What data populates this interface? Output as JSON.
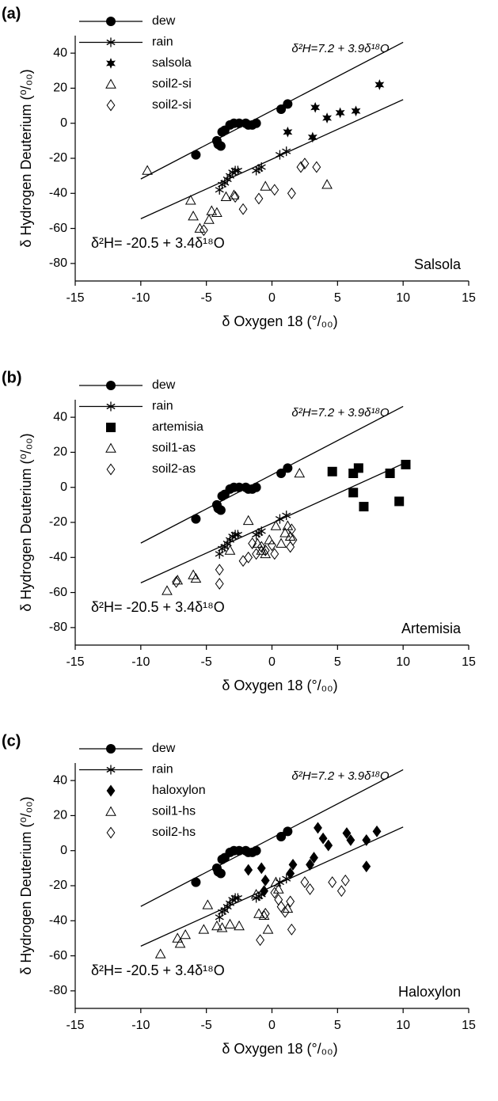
{
  "chart_data": [
    {
      "type": "scatter",
      "panel": "(a)",
      "plant": "Salsola",
      "x_label": "δ Oxygen 18 (°/₀₀)",
      "y_label": "δ Hydrogen Deuterium (⁰/₀₀)",
      "eq_upper": "δ²H=7.2 + 3.9δ¹⁸O",
      "eq_lower": "δ²H= -20.5 + 3.4δ¹⁸O",
      "xlim": [
        -15,
        15
      ],
      "xticks": [
        -15,
        -10,
        -5,
        0,
        5,
        10,
        15
      ],
      "ylim": [
        -90,
        50
      ],
      "yticks": [
        -80,
        -60,
        -40,
        -20,
        0,
        20,
        40
      ],
      "lines": [
        {
          "x": [
            -10,
            10
          ],
          "values": [
            -31.8,
            46.2
          ]
        },
        {
          "x": [
            -10,
            10
          ],
          "values": [
            -54.5,
            13.5
          ]
        }
      ],
      "series": [
        {
          "name": "dew",
          "marker": "circle",
          "legend_line": true,
          "color": "#000",
          "x": [
            -5.8,
            -4.2,
            -4.1,
            -3.9,
            -3.8,
            -3.6,
            -3.2,
            -2.9,
            -2.5,
            -2.0,
            -1.8,
            -1.5,
            -1.2,
            0.7,
            1.2
          ],
          "values": [
            -18,
            -10,
            -12,
            -13,
            -5,
            -4,
            -1,
            0,
            0,
            0,
            -1,
            -1,
            0,
            8,
            11
          ]
        },
        {
          "name": "rain",
          "marker": "asterisk",
          "legend_line": true,
          "color": "#000",
          "x": [
            -4,
            -3.8,
            -3.6,
            -3.4,
            -3.2,
            -3,
            -2.8,
            -2.6,
            -1.2,
            -1,
            -0.8,
            0.6,
            1.1
          ],
          "values": [
            -38,
            -35,
            -34,
            -32,
            -30,
            -28,
            -27,
            -27,
            -27,
            -26,
            -25,
            -18,
            -16
          ]
        },
        {
          "name": "salsola",
          "marker": "star",
          "color": "#000",
          "x": [
            1.2,
            3.3,
            3.1,
            4.2,
            5.2,
            6.4,
            8.2
          ],
          "values": [
            -5,
            9,
            -8,
            3,
            6,
            7,
            22
          ]
        },
        {
          "name": "soil2-si",
          "marker": "triangle",
          "color": "#000",
          "x": [
            -9.5,
            -6.2,
            -6,
            -5.5,
            -4.8,
            -4.6,
            -4.2,
            -3.5,
            -2.9,
            -0.5,
            4.2
          ],
          "values": [
            -27,
            -44,
            -53,
            -60,
            -55,
            -50,
            -51,
            -42,
            -41,
            -36,
            -35
          ]
        },
        {
          "name": "soil2-si",
          "marker": "diamond",
          "color": "#000",
          "x": [
            -5.2,
            -2.8,
            -2.2,
            -1.0,
            0.2,
            1.5,
            2.2,
            2.5,
            3.4
          ],
          "values": [
            -61,
            -42,
            -49,
            -43,
            -38,
            -40,
            -25,
            -23,
            -25
          ]
        }
      ]
    },
    {
      "type": "scatter",
      "panel": "(b)",
      "plant": "Artemisia",
      "x_label": "δ Oxygen 18 (°/₀₀)",
      "y_label": "δ Hydrogen Deuterium (⁰/₀₀)",
      "eq_upper": "δ²H=7.2 + 3.9δ¹⁸O",
      "eq_lower": "δ²H= -20.5 + 3.4δ¹⁸O",
      "xlim": [
        -15,
        15
      ],
      "xticks": [
        -15,
        -10,
        -5,
        0,
        5,
        10,
        15
      ],
      "ylim": [
        -90,
        50
      ],
      "yticks": [
        -80,
        -60,
        -40,
        -20,
        0,
        20,
        40
      ],
      "lines": [
        {
          "x": [
            -10,
            10
          ],
          "values": [
            -31.8,
            46.2
          ]
        },
        {
          "x": [
            -10,
            10
          ],
          "values": [
            -54.5,
            13.5
          ]
        }
      ],
      "series": [
        {
          "name": "dew",
          "marker": "circle",
          "legend_line": true,
          "color": "#000",
          "x": [
            -5.8,
            -4.2,
            -4.1,
            -3.9,
            -3.8,
            -3.6,
            -3.2,
            -2.9,
            -2.5,
            -2.0,
            -1.8,
            -1.5,
            -1.2,
            0.7,
            1.2
          ],
          "values": [
            -18,
            -10,
            -12,
            -13,
            -5,
            -4,
            -1,
            0,
            0,
            0,
            -1,
            -1,
            0,
            8,
            11
          ]
        },
        {
          "name": "rain",
          "marker": "asterisk",
          "legend_line": true,
          "color": "#000",
          "x": [
            -4,
            -3.8,
            -3.6,
            -3.4,
            -3.2,
            -3,
            -2.8,
            -2.6,
            -1.2,
            -1,
            -0.8,
            0.6,
            1.1
          ],
          "values": [
            -38,
            -35,
            -34,
            -32,
            -30,
            -28,
            -27,
            -27,
            -27,
            -26,
            -25,
            -18,
            -16
          ]
        },
        {
          "name": "artemisia",
          "marker": "square",
          "color": "#000",
          "x": [
            4.6,
            6.2,
            6.6,
            6.2,
            7,
            9,
            9.7,
            10.2
          ],
          "values": [
            9,
            8,
            11,
            -3,
            -11,
            8,
            -8,
            13
          ]
        },
        {
          "name": "soil1-as",
          "marker": "triangle",
          "color": "#000",
          "x": [
            -8,
            -7.2,
            -6,
            -5.8,
            -3.2,
            -1.8,
            -1.1,
            -0.8,
            -0.5,
            -0.2,
            0.3,
            0.7,
            1,
            1.2,
            1.4,
            2.1
          ],
          "values": [
            -59,
            -53,
            -50,
            -52,
            -36,
            -19,
            -32,
            -36,
            -38,
            -30,
            -22,
            -32,
            -26,
            -22,
            -28,
            8
          ]
        },
        {
          "name": "soil2-as",
          "marker": "diamond",
          "color": "#000",
          "x": [
            -7.3,
            -4,
            -4,
            -1.5,
            -1.2,
            -2.2,
            -1.8,
            -0.8,
            -0.5,
            0,
            1.5,
            1.6,
            1.4,
            0.2
          ],
          "values": [
            -54,
            -47,
            -55,
            -32,
            -38,
            -42,
            -40,
            -34,
            -36,
            -33,
            -24,
            -30,
            -34,
            -38
          ]
        }
      ]
    },
    {
      "type": "scatter",
      "panel": "(c)",
      "plant": "Haloxylon",
      "x_label": "δ Oxygen 18 (°/₀₀)",
      "y_label": "δ Hydrogen Deuterium (⁰/₀₀)",
      "eq_upper": "δ²H=7.2 + 3.9δ¹⁸O",
      "eq_lower": "δ²H= -20.5 + 3.4δ¹⁸O",
      "xlim": [
        -15,
        15
      ],
      "xticks": [
        -15,
        -10,
        -5,
        0,
        5,
        10,
        15
      ],
      "ylim": [
        -90,
        50
      ],
      "yticks": [
        -80,
        -60,
        -40,
        -20,
        0,
        20,
        40
      ],
      "lines": [
        {
          "x": [
            -10,
            10
          ],
          "values": [
            -31.8,
            46.2
          ]
        },
        {
          "x": [
            -10,
            10
          ],
          "values": [
            -54.5,
            13.5
          ]
        }
      ],
      "series": [
        {
          "name": "dew",
          "marker": "circle",
          "legend_line": true,
          "color": "#000",
          "x": [
            -5.8,
            -4.2,
            -4.1,
            -3.9,
            -3.8,
            -3.6,
            -3.2,
            -2.9,
            -2.5,
            -2.0,
            -1.8,
            -1.5,
            -1.2,
            0.7,
            1.2
          ],
          "values": [
            -18,
            -10,
            -12,
            -13,
            -5,
            -4,
            -1,
            0,
            0,
            0,
            -1,
            -1,
            0,
            8,
            11
          ]
        },
        {
          "name": "rain",
          "marker": "asterisk",
          "legend_line": true,
          "color": "#000",
          "x": [
            -4,
            -3.8,
            -3.6,
            -3.4,
            -3.2,
            -3,
            -2.8,
            -2.6,
            -1.2,
            -1,
            -0.8,
            0.6,
            1.1
          ],
          "values": [
            -38,
            -35,
            -34,
            -32,
            -30,
            -28,
            -27,
            -27,
            -27,
            -26,
            -25,
            -18,
            -16
          ]
        },
        {
          "name": "haloxylon",
          "marker": "filled-diamond",
          "color": "#000",
          "x": [
            -1.8,
            -0.8,
            -0.5,
            -0.6,
            1.4,
            1.6,
            2.9,
            3.2,
            3.5,
            3.9,
            4.3,
            5.7,
            6.0,
            7.2,
            7.2,
            8
          ],
          "values": [
            -11,
            -10,
            -17,
            -23,
            -13,
            -8,
            -8,
            -4,
            13,
            7,
            3,
            10,
            6,
            6,
            -9,
            11
          ]
        },
        {
          "name": "soil1-hs",
          "marker": "triangle",
          "color": "#000",
          "x": [
            -8.5,
            -7.2,
            -7.0,
            -6.6,
            -5.2,
            -4.9,
            -4.2,
            -3.8,
            -3.2,
            -2.5,
            -1.2,
            -1,
            -0.6,
            -0.3,
            0.3,
            0.5,
            1.2
          ],
          "values": [
            -59,
            -50,
            -53,
            -48,
            -45,
            -31,
            -43,
            -44,
            -42,
            -43,
            -25,
            -36,
            -37,
            -45,
            -18,
            -22,
            -33
          ]
        },
        {
          "name": "soil2-hs",
          "marker": "diamond",
          "color": "#000",
          "x": [
            -0.9,
            -0.5,
            0.2,
            0.5,
            0.7,
            1,
            1.4,
            1.5,
            2.5,
            2.9,
            4.6,
            5.3,
            5.6
          ],
          "values": [
            -51,
            -36,
            -24,
            -28,
            -32,
            -35,
            -29,
            -45,
            -18,
            -22,
            -18,
            -23,
            -17
          ]
        }
      ]
    }
  ]
}
